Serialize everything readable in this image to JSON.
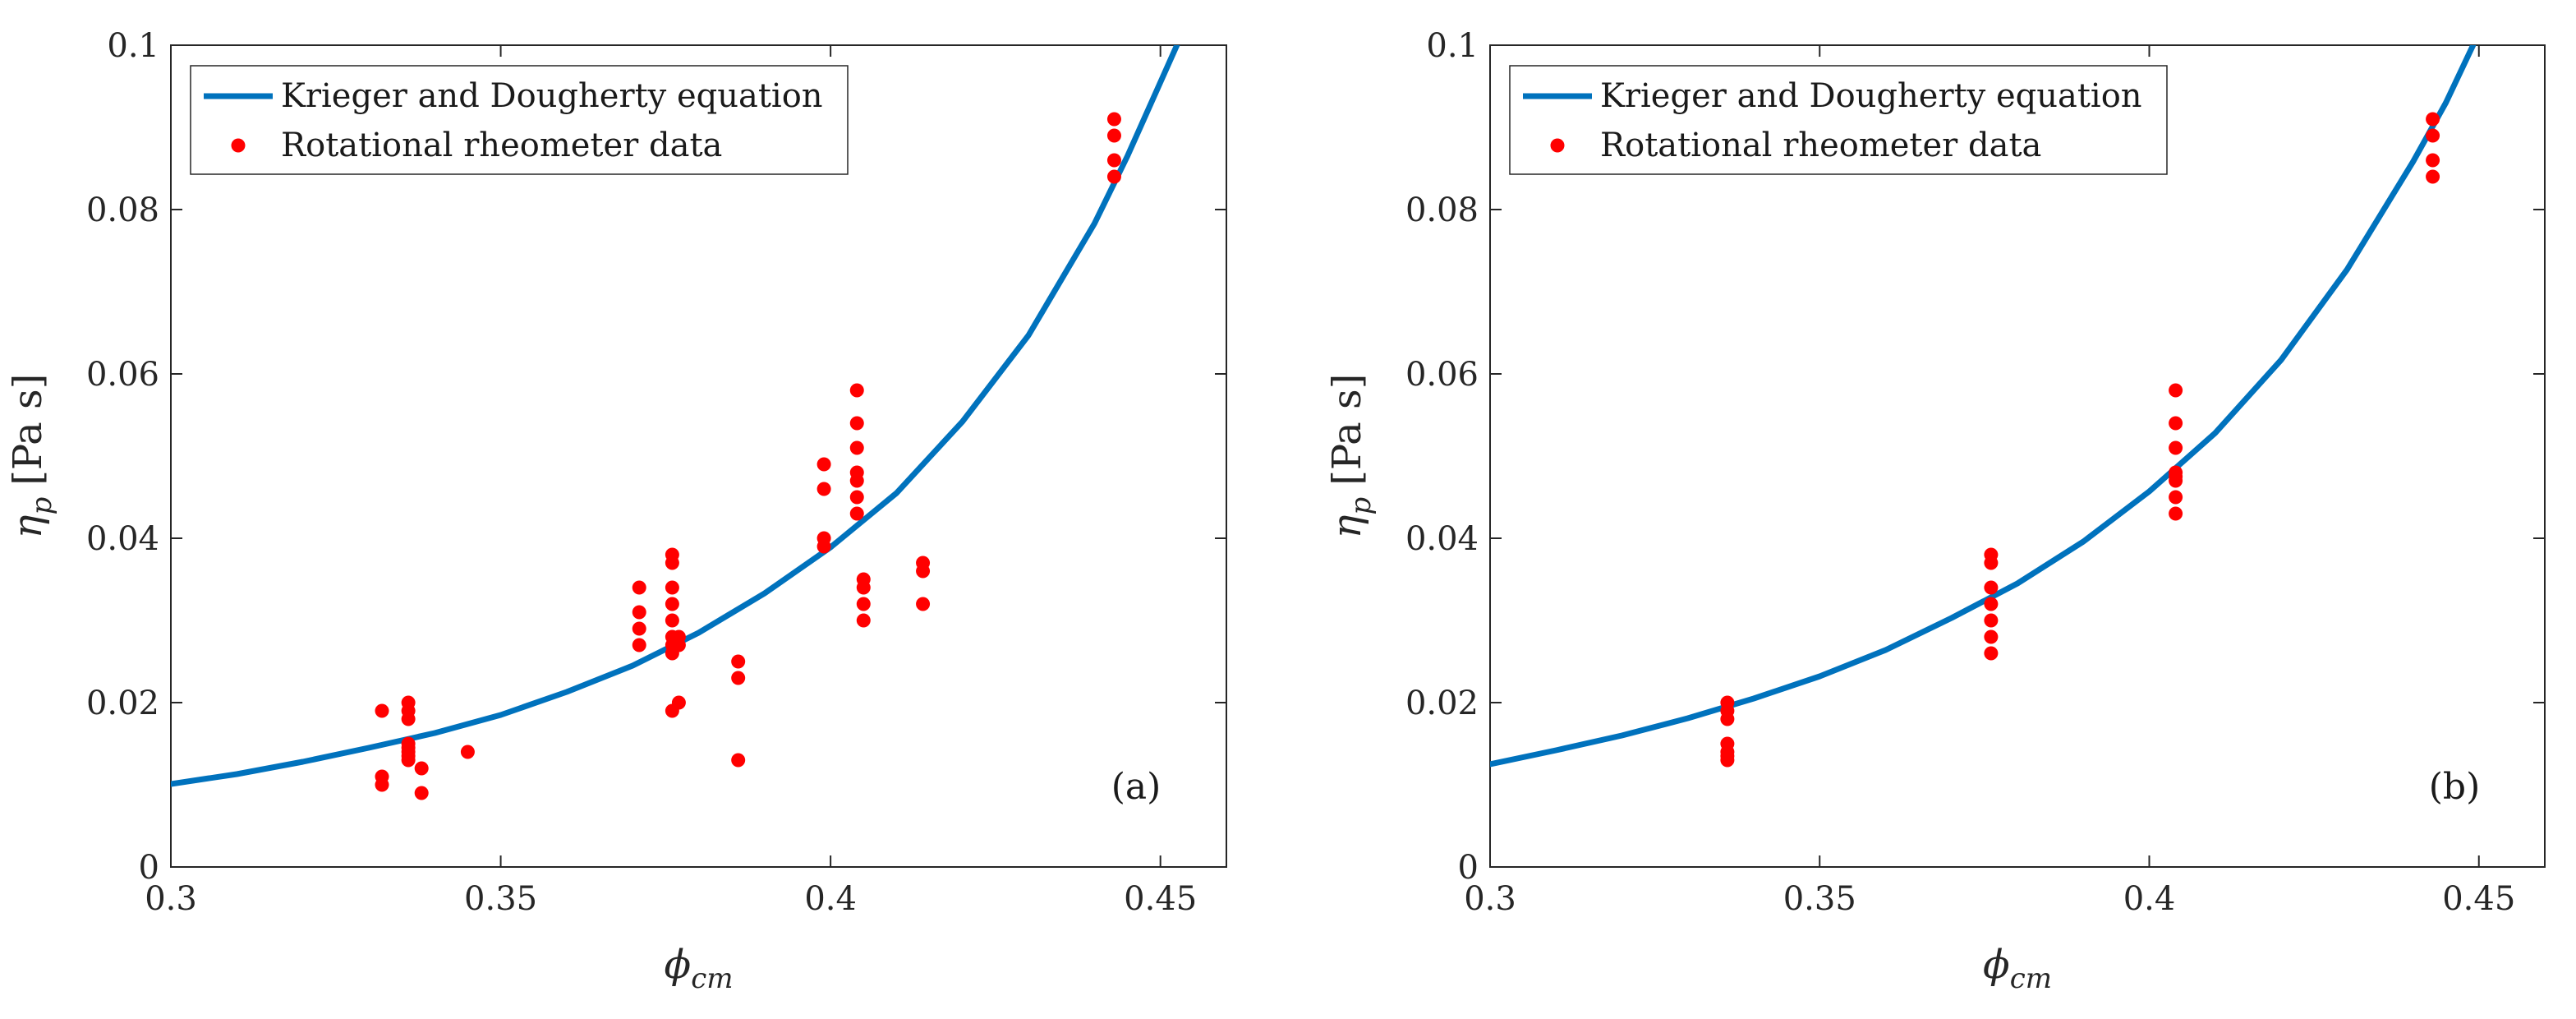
{
  "chart_data": [
    {
      "type": "scatter",
      "panel_label": "(a)",
      "xlabel": "ϕ",
      "xlabel_sub": "cm",
      "ylabel": "η",
      "ylabel_sub": "p",
      "ylabel_unit": "[Pa s]",
      "xlim": [
        0.3,
        0.46
      ],
      "ylim": [
        0,
        0.1
      ],
      "xticks": [
        0.3,
        0.35,
        0.4,
        0.45
      ],
      "xtick_labels": [
        "0.3",
        "0.35",
        "0.4",
        "0.45"
      ],
      "yticks": [
        0,
        0.02,
        0.04,
        0.06,
        0.08,
        0.1
      ],
      "ytick_labels": [
        "0",
        "0.02",
        "0.04",
        "0.06",
        "0.08",
        "0.1"
      ],
      "legend_position": "top-left",
      "series": [
        {
          "name": "Krieger and Dougherty equation",
          "kind": "line",
          "color": "#0072BD",
          "x": [
            0.3,
            0.31,
            0.32,
            0.33,
            0.34,
            0.35,
            0.36,
            0.37,
            0.38,
            0.39,
            0.4,
            0.41,
            0.42,
            0.43,
            0.44,
            0.445,
            0.45,
            0.4525
          ],
          "y": [
            0.0101,
            0.0113,
            0.0128,
            0.0145,
            0.0163,
            0.0185,
            0.0213,
            0.0245,
            0.0285,
            0.0333,
            0.0389,
            0.0455,
            0.0542,
            0.0647,
            0.0783,
            0.0865,
            0.0955,
            0.1
          ]
        },
        {
          "name": "Rotational rheometer data",
          "kind": "scatter",
          "color": "#FF0000",
          "x": [
            0.332,
            0.332,
            0.332,
            0.336,
            0.336,
            0.336,
            0.336,
            0.336,
            0.336,
            0.336,
            0.336,
            0.338,
            0.338,
            0.345,
            0.371,
            0.371,
            0.371,
            0.371,
            0.376,
            0.376,
            0.376,
            0.376,
            0.376,
            0.376,
            0.376,
            0.376,
            0.376,
            0.377,
            0.377,
            0.377,
            0.386,
            0.386,
            0.386,
            0.399,
            0.399,
            0.399,
            0.399,
            0.404,
            0.404,
            0.404,
            0.404,
            0.404,
            0.404,
            0.404,
            0.405,
            0.405,
            0.405,
            0.405,
            0.414,
            0.414,
            0.414,
            0.443,
            0.443,
            0.443,
            0.443
          ],
          "y": [
            0.019,
            0.011,
            0.01,
            0.02,
            0.019,
            0.018,
            0.015,
            0.014,
            0.013,
            0.0145,
            0.0135,
            0.012,
            0.009,
            0.014,
            0.034,
            0.031,
            0.029,
            0.027,
            0.038,
            0.037,
            0.034,
            0.032,
            0.03,
            0.028,
            0.027,
            0.026,
            0.019,
            0.028,
            0.027,
            0.02,
            0.025,
            0.023,
            0.013,
            0.049,
            0.046,
            0.04,
            0.039,
            0.058,
            0.054,
            0.051,
            0.048,
            0.047,
            0.045,
            0.043,
            0.035,
            0.034,
            0.032,
            0.03,
            0.037,
            0.036,
            0.032,
            0.091,
            0.089,
            0.086,
            0.084
          ]
        }
      ]
    },
    {
      "type": "scatter",
      "panel_label": "(b)",
      "xlabel": "ϕ",
      "xlabel_sub": "cm",
      "ylabel": "η",
      "ylabel_sub": "p",
      "ylabel_unit": "[Pa s]",
      "xlim": [
        0.3,
        0.46
      ],
      "ylim": [
        0,
        0.1
      ],
      "xticks": [
        0.3,
        0.35,
        0.4,
        0.45
      ],
      "xtick_labels": [
        "0.3",
        "0.35",
        "0.4",
        "0.45"
      ],
      "yticks": [
        0,
        0.02,
        0.04,
        0.06,
        0.08,
        0.1
      ],
      "ytick_labels": [
        "0",
        "0.02",
        "0.04",
        "0.06",
        "0.08",
        "0.1"
      ],
      "legend_position": "top-left",
      "series": [
        {
          "name": "Krieger and Dougherty equation",
          "kind": "line",
          "color": "#0072BD",
          "x": [
            0.3,
            0.31,
            0.32,
            0.33,
            0.34,
            0.35,
            0.36,
            0.37,
            0.38,
            0.39,
            0.4,
            0.41,
            0.42,
            0.43,
            0.44,
            0.445,
            0.45
          ],
          "y": [
            0.0125,
            0.0142,
            0.016,
            0.0181,
            0.0205,
            0.0232,
            0.0264,
            0.0303,
            0.0345,
            0.0396,
            0.0457,
            0.0528,
            0.0617,
            0.0727,
            0.0858,
            0.093,
            0.1015
          ]
        },
        {
          "name": "Rotational rheometer data",
          "kind": "scatter",
          "color": "#FF0000",
          "x": [
            0.336,
            0.336,
            0.336,
            0.336,
            0.336,
            0.336,
            0.336,
            0.376,
            0.376,
            0.376,
            0.376,
            0.376,
            0.376,
            0.376,
            0.404,
            0.404,
            0.404,
            0.404,
            0.404,
            0.404,
            0.404,
            0.404,
            0.443,
            0.443,
            0.443,
            0.443
          ],
          "y": [
            0.02,
            0.019,
            0.018,
            0.015,
            0.014,
            0.0135,
            0.013,
            0.038,
            0.037,
            0.034,
            0.032,
            0.03,
            0.028,
            0.026,
            0.058,
            0.054,
            0.051,
            0.048,
            0.047,
            0.045,
            0.043,
            0.0475,
            0.091,
            0.089,
            0.086,
            0.084
          ]
        }
      ]
    }
  ]
}
